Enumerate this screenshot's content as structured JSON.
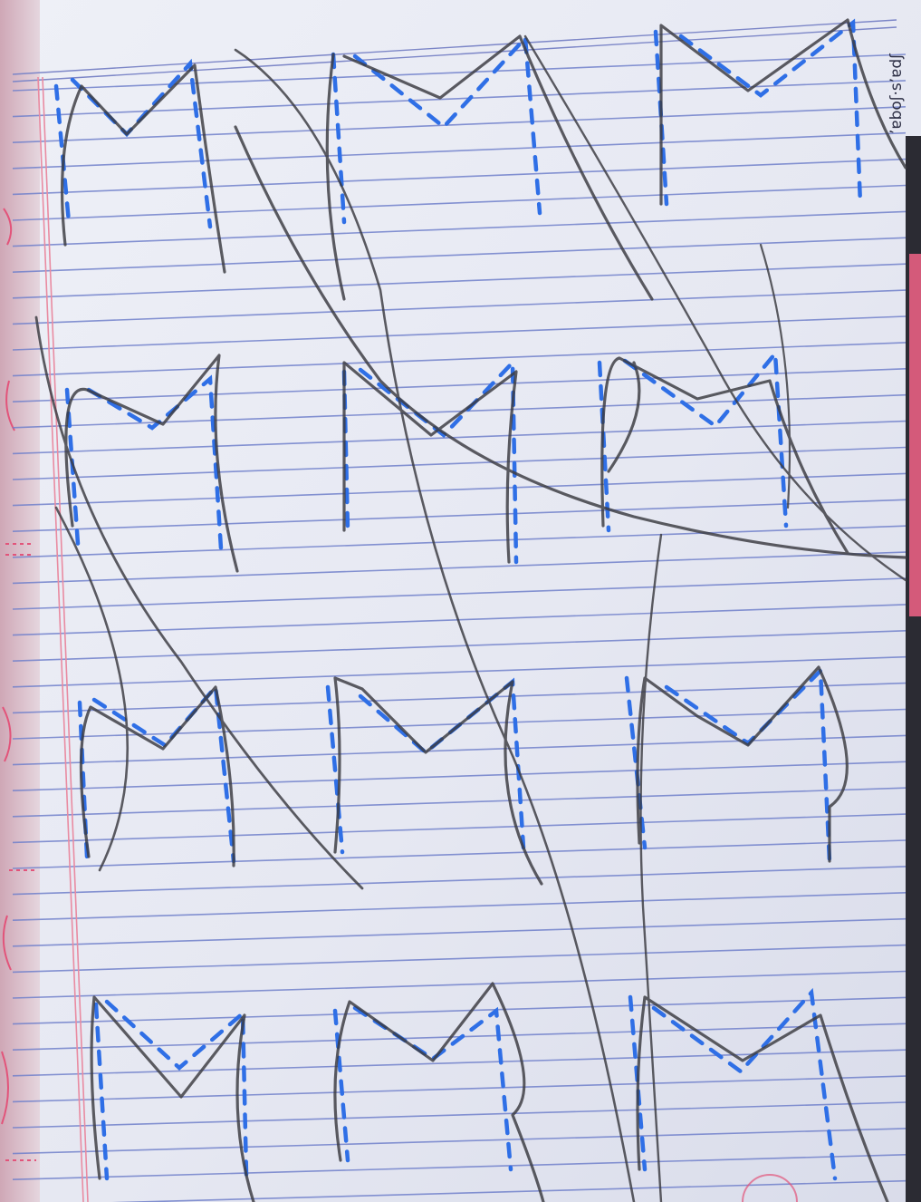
{
  "image": {
    "subject": "handwriting-practice-notebook-page",
    "colors": {
      "paper": "#e7e9f3",
      "rule_line": "#6f7ec9",
      "margin_line": "#e58aa0",
      "dotted_guide": "#2f6fe6",
      "pencil": "#3a3a40",
      "left_page_edge": "#d9b6c3",
      "right_dark_strip": "#2b2b33"
    },
    "corner_caption": "’ɐboʃ·s’ɐdʃ"
  },
  "worksheet": {
    "letter": "M",
    "rows": 4,
    "letters_per_row": 3
  }
}
